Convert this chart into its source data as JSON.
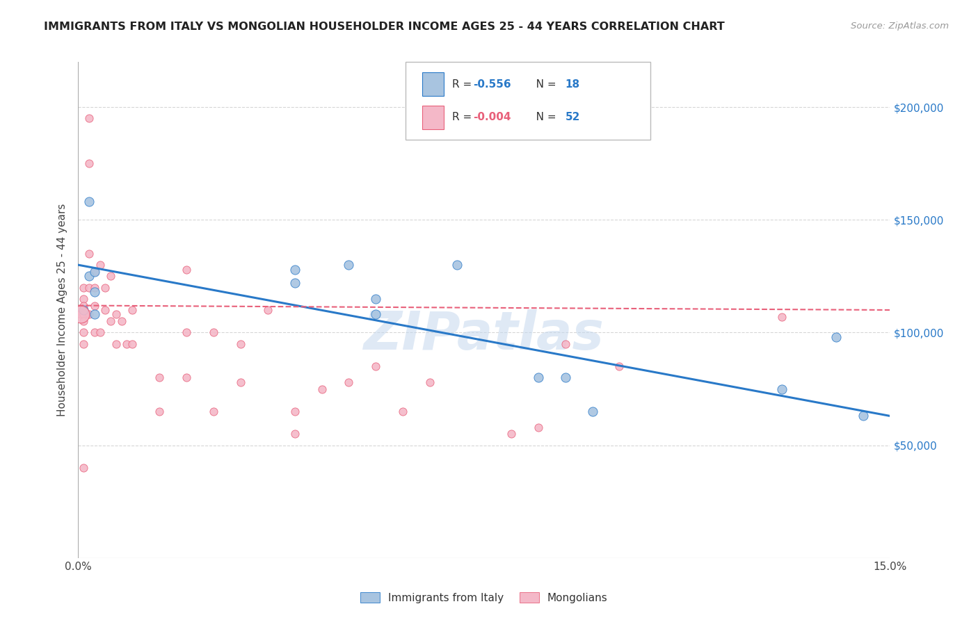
{
  "title": "IMMIGRANTS FROM ITALY VS MONGOLIAN HOUSEHOLDER INCOME AGES 25 - 44 YEARS CORRELATION CHART",
  "source": "Source: ZipAtlas.com",
  "ylabel": "Householder Income Ages 25 - 44 years",
  "xlim": [
    0.0,
    0.15
  ],
  "ylim": [
    0,
    220000
  ],
  "yticks": [
    50000,
    100000,
    150000,
    200000
  ],
  "ytick_labels": [
    "$50,000",
    "$100,000",
    "$150,000",
    "$200,000"
  ],
  "xticks": [
    0.0,
    0.03,
    0.06,
    0.09,
    0.12,
    0.15
  ],
  "xtick_labels": [
    "0.0%",
    "",
    "",
    "",
    "",
    "15.0%"
  ],
  "legend_italy_R": "-0.556",
  "legend_italy_N": "18",
  "legend_mongo_R": "-0.004",
  "legend_mongo_N": "52",
  "italy_color": "#a8c4e0",
  "mongolia_color": "#f4b8c8",
  "italy_line_color": "#2979c8",
  "mongolia_line_color": "#e8607a",
  "watermark": "ZIPatlas",
  "background_color": "#ffffff",
  "grid_color": "#cccccc",
  "italy_x": [
    0.001,
    0.002,
    0.002,
    0.003,
    0.003,
    0.003,
    0.04,
    0.04,
    0.05,
    0.055,
    0.055,
    0.07,
    0.085,
    0.09,
    0.095,
    0.13,
    0.14,
    0.145
  ],
  "italy_y": [
    110000,
    158000,
    125000,
    127000,
    118000,
    108000,
    128000,
    122000,
    130000,
    115000,
    108000,
    130000,
    80000,
    80000,
    65000,
    75000,
    98000,
    63000
  ],
  "mongolia_x": [
    0.0005,
    0.001,
    0.001,
    0.001,
    0.001,
    0.001,
    0.001,
    0.001,
    0.001,
    0.002,
    0.002,
    0.002,
    0.002,
    0.002,
    0.003,
    0.003,
    0.003,
    0.003,
    0.004,
    0.004,
    0.005,
    0.005,
    0.006,
    0.006,
    0.007,
    0.007,
    0.008,
    0.009,
    0.01,
    0.01,
    0.015,
    0.015,
    0.02,
    0.02,
    0.02,
    0.025,
    0.025,
    0.03,
    0.03,
    0.035,
    0.04,
    0.04,
    0.045,
    0.05,
    0.055,
    0.06,
    0.065,
    0.08,
    0.085,
    0.09,
    0.1,
    0.13
  ],
  "mongolia_y": [
    108000,
    120000,
    115000,
    112000,
    108000,
    105000,
    100000,
    95000,
    40000,
    195000,
    175000,
    135000,
    120000,
    108000,
    127000,
    120000,
    112000,
    100000,
    130000,
    100000,
    120000,
    110000,
    125000,
    105000,
    108000,
    95000,
    105000,
    95000,
    110000,
    95000,
    80000,
    65000,
    128000,
    100000,
    80000,
    100000,
    65000,
    95000,
    78000,
    110000,
    65000,
    55000,
    75000,
    78000,
    85000,
    65000,
    78000,
    55000,
    58000,
    95000,
    85000,
    107000
  ],
  "italy_scatter_size": 90,
  "mongolia_scatter_size": 65,
  "mongolia_large_size": 320,
  "italy_line_x0": 0.0,
  "italy_line_y0": 130000,
  "italy_line_x1": 0.15,
  "italy_line_y1": 63000,
  "mongo_line_x0": 0.0,
  "mongo_line_y0": 112000,
  "mongo_line_x1": 0.15,
  "mongo_line_y1": 110000
}
